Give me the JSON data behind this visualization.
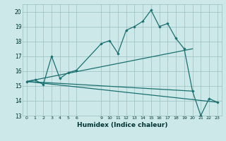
{
  "xlabel": "Humidex (Indice chaleur)",
  "bg_color": "#cce8e8",
  "grid_color": "#9bbfbf",
  "line_color": "#1a7070",
  "ylim": [
    13,
    20.5
  ],
  "xlim": [
    -0.5,
    23.5
  ],
  "yticks": [
    13,
    14,
    15,
    16,
    17,
    18,
    19,
    20
  ],
  "xticks": [
    0,
    1,
    2,
    3,
    4,
    5,
    6,
    9,
    10,
    11,
    12,
    13,
    14,
    15,
    16,
    17,
    18,
    19,
    20,
    21,
    22,
    23
  ],
  "line1_x": [
    0,
    1,
    2,
    3,
    4,
    5,
    6,
    9,
    10,
    11,
    12,
    13,
    14,
    15,
    16,
    17,
    18,
    19,
    20,
    21,
    22,
    23
  ],
  "line1_y": [
    15.3,
    15.4,
    15.1,
    17.0,
    15.5,
    15.9,
    16.05,
    17.85,
    18.05,
    17.2,
    18.75,
    19.0,
    19.35,
    20.1,
    19.0,
    19.2,
    18.2,
    17.5,
    14.65,
    13.0,
    14.15,
    13.9
  ],
  "line2_x": [
    0,
    20
  ],
  "line2_y": [
    15.3,
    17.5
  ],
  "line3_x": [
    0,
    23
  ],
  "line3_y": [
    15.3,
    13.9
  ],
  "line4_x": [
    0,
    20
  ],
  "line4_y": [
    15.3,
    14.65
  ]
}
